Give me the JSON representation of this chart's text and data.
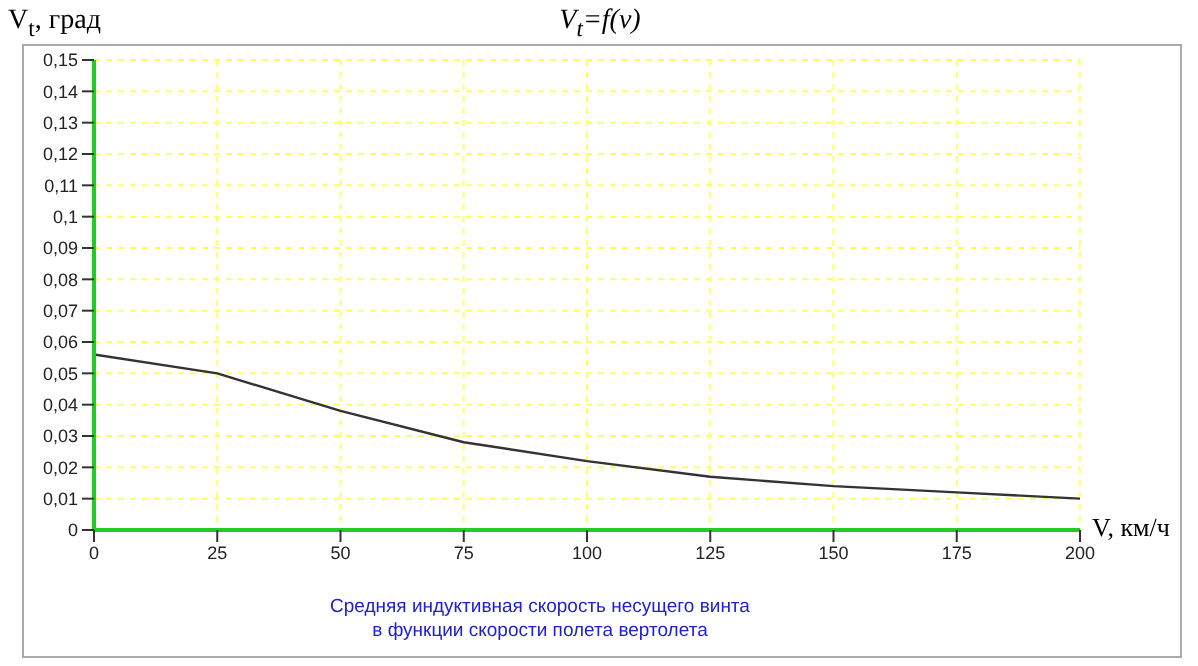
{
  "chart_data": {
    "type": "line",
    "title": "V$_{t}$=f(v)",
    "ylabel": "V$_{t}$, град",
    "xlabel": "V, км/ч",
    "annotations": [
      "Средняя индуктивная скорость несущего винта\nв функции скорости полета вертолета"
    ],
    "x": [
      0,
      25,
      50,
      75,
      100,
      125,
      150,
      175,
      200
    ],
    "series": [
      {
        "color": "#333333",
        "values": [
          0.056,
          0.05,
          0.038,
          0.028,
          0.022,
          0.017,
          0.014,
          0.012,
          0.01
        ]
      }
    ],
    "xlim": [
      0,
      200
    ],
    "xticks": [
      0,
      25,
      50,
      75,
      100,
      125,
      150,
      175,
      200
    ],
    "ylim": [
      0,
      0.15
    ],
    "yticks": [
      0,
      {
        "value": 0.01,
        "label": "0,01"
      },
      {
        "value": 0.02,
        "label": "0,02"
      },
      {
        "value": 0.03,
        "label": "0,03"
      },
      {
        "value": 0.04,
        "label": "0,04"
      },
      {
        "value": 0.05,
        "label": "0,05"
      },
      {
        "value": 0.06,
        "label": "0,06"
      },
      {
        "value": 0.07,
        "label": "0,07"
      },
      {
        "value": 0.08,
        "label": "0,08"
      },
      {
        "value": 0.09,
        "label": "0,09"
      },
      {
        "value": 0.1,
        "label": "0,1"
      },
      {
        "value": 0.11,
        "label": "0,11"
      },
      {
        "value": 0.12,
        "label": "0,12"
      },
      {
        "value": 0.13,
        "label": "0,13"
      },
      {
        "value": 0.14,
        "label": "0,14"
      },
      {
        "value": 0.15,
        "label": "0,15"
      }
    ],
    "grid": true,
    "legend": false,
    "marker": "none",
    "line_style": "solid"
  }
}
